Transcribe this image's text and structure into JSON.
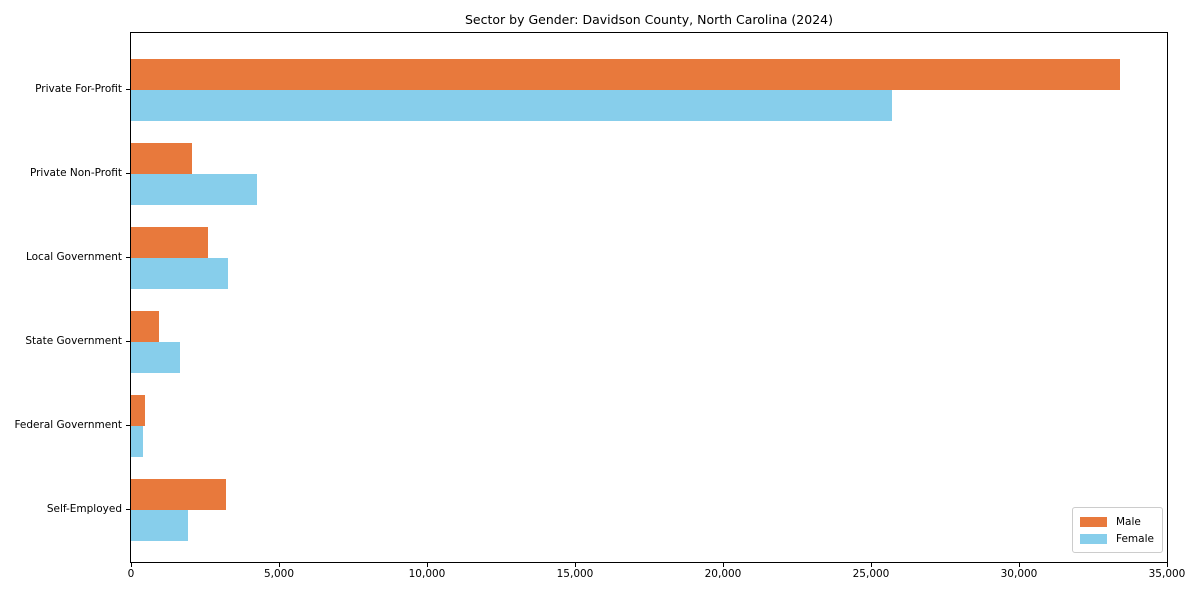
{
  "chart_data": {
    "type": "bar",
    "orientation": "horizontal",
    "title": "Sector by Gender: Davidson County, North Carolina (2024)",
    "categories": [
      "Private For-Profit",
      "Private Non-Profit",
      "Local Government",
      "State Government",
      "Federal Government",
      "Self-Employed"
    ],
    "series": [
      {
        "name": "Male",
        "color": "#e8793c",
        "values": [
          33400,
          2050,
          2600,
          940,
          480,
          3200
        ]
      },
      {
        "name": "Female",
        "color": "#87ceeb",
        "values": [
          25700,
          4250,
          3260,
          1650,
          420,
          1920
        ]
      }
    ],
    "xlabel": "",
    "ylabel": "",
    "xlim": [
      0,
      35000
    ],
    "x_tick_values": [
      0,
      5000,
      10000,
      15000,
      20000,
      25000,
      30000,
      35000
    ],
    "x_tick_labels": [
      "0",
      "5,000",
      "10,000",
      "15,000",
      "20,000",
      "25,000",
      "30,000",
      "35,000"
    ],
    "grid": false,
    "legend": {
      "position": "lower right",
      "entries": [
        "Male",
        "Female"
      ]
    },
    "colors": {
      "male": "#e8793c",
      "female": "#87ceeb",
      "spine": "#000000",
      "background": "#ffffff",
      "legend_border": "#cccccc"
    }
  }
}
